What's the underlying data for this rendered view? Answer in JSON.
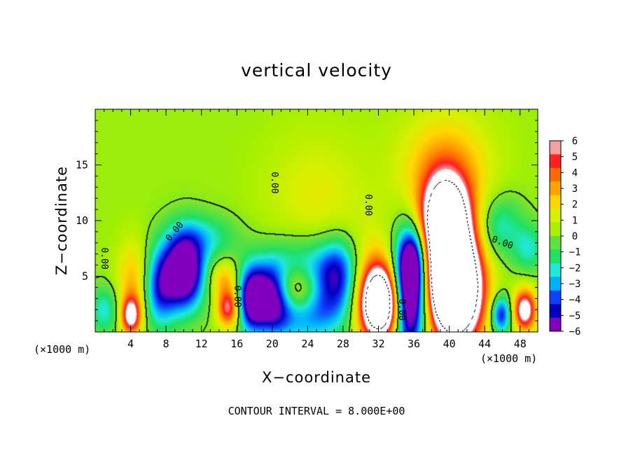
{
  "chart_data": {
    "type": "heatmap",
    "title": "vertical velocity",
    "xlabel": "X−coordinate",
    "ylabel": "Z−coordinate",
    "x_unit_left": "(×1000 m)",
    "x_unit_right": "(×1000 m)",
    "xlim": [
      0,
      50
    ],
    "ylim": [
      0,
      20
    ],
    "x_ticks": [
      4,
      8,
      12,
      16,
      20,
      24,
      28,
      32,
      36,
      40,
      44,
      48
    ],
    "y_ticks": [
      5,
      10,
      15
    ],
    "colorbar": {
      "min": -6,
      "max": 6,
      "ticks": [
        "6",
        "5",
        "4",
        "3",
        "2",
        "1",
        "0",
        "−1",
        "−2",
        "−3",
        "−4",
        "−5",
        "−6"
      ],
      "colors": [
        "#f4a0a0",
        "#ff2020",
        "#ff6a00",
        "#ffa500",
        "#ffd700",
        "#d8f000",
        "#a8f000",
        "#60e040",
        "#20e060",
        "#20e8d8",
        "#00b0ff",
        "#1040ff",
        "#0000c0",
        "#8000c0"
      ]
    },
    "background_value": 0.3,
    "features": [
      {
        "x": 22.5,
        "y": 3.8,
        "w": 0.95,
        "sx": 2.3,
        "sy": 1.6
      },
      {
        "x": 24.0,
        "y": 3.6,
        "w": -0.9,
        "sx": 3.8,
        "sy": 2.6
      },
      {
        "x": 19.8,
        "y": 3.2,
        "w": -0.8,
        "sx": 1.6,
        "sy": 2.0
      },
      {
        "x": 10.0,
        "y": 5.5,
        "w": -0.95,
        "sx": 1.6,
        "sy": 2.4
      },
      {
        "x": 32.3,
        "y": 2.5,
        "w": 1.15,
        "sx": 1.6,
        "sy": 2.2
      },
      {
        "x": 31.5,
        "y": 3.6,
        "w": 0.5,
        "sx": 2.0,
        "sy": 3.0
      },
      {
        "x": 35.4,
        "y": 3.5,
        "w": -1.2,
        "sx": 1.4,
        "sy": 3.6
      },
      {
        "x": 36.0,
        "y": 6.5,
        "w": -0.5,
        "sx": 1.0,
        "sy": 2.0
      },
      {
        "x": 40.0,
        "y": 6.0,
        "w": 1.3,
        "sx": 2.2,
        "sy": 3.8
      },
      {
        "x": 41.0,
        "y": 3.0,
        "w": 0.9,
        "sx": 2.0,
        "sy": 3.0
      },
      {
        "x": 39.5,
        "y": 10.5,
        "w": 0.75,
        "sx": 1.8,
        "sy": 2.5
      },
      {
        "x": 39.5,
        "y": 14.5,
        "w": 0.35,
        "sx": 3.5,
        "sy": 3.5
      },
      {
        "x": 45.8,
        "y": 1.6,
        "w": -0.6,
        "sx": 0.8,
        "sy": 1.2
      },
      {
        "x": 48.5,
        "y": 2.0,
        "w": 0.8,
        "sx": 0.9,
        "sy": 1.3
      },
      {
        "x": 15.0,
        "y": 2.2,
        "w": 0.65,
        "sx": 0.9,
        "sy": 1.2
      },
      {
        "x": 14.5,
        "y": 4.8,
        "w": 0.3,
        "sx": 1.2,
        "sy": 1.2
      },
      {
        "x": 17.5,
        "y": 3.0,
        "w": -0.55,
        "sx": 1.0,
        "sy": 2.0
      },
      {
        "x": 4.0,
        "y": 1.5,
        "w": 0.7,
        "sx": 0.8,
        "sy": 1.2
      },
      {
        "x": 4.3,
        "y": 4.5,
        "w": 0.3,
        "sx": 1.3,
        "sy": 2.5
      },
      {
        "x": 7.2,
        "y": 4.0,
        "w": -0.5,
        "sx": 1.3,
        "sy": 2.5
      },
      {
        "x": 1.0,
        "y": 2.0,
        "w": -0.3,
        "sx": 1.2,
        "sy": 1.5
      },
      {
        "x": 27.5,
        "y": 6.0,
        "w": -0.3,
        "sx": 1.5,
        "sy": 2.0
      },
      {
        "x": 12.5,
        "y": 8.5,
        "w": -0.25,
        "sx": 2.5,
        "sy": 1.5
      },
      {
        "x": 45.5,
        "y": 9.5,
        "w": -0.3,
        "sx": 2.0,
        "sy": 2.0
      },
      {
        "x": 49.0,
        "y": 7.5,
        "w": -0.25,
        "sx": 1.2,
        "sy": 1.5
      },
      {
        "x": 25.0,
        "y": 12.0,
        "w": 0.15,
        "sx": 4.0,
        "sy": 4.0
      }
    ],
    "contour_labels": [
      {
        "text": "0.00",
        "x": 9.0,
        "y": 9.0,
        "rotate": -50
      },
      {
        "text": "0.00",
        "x": 20.2,
        "y": 13.4,
        "rotate": 90
      },
      {
        "text": "0.00",
        "x": 30.8,
        "y": 11.4,
        "rotate": 90
      },
      {
        "text": "0.00",
        "x": 16.0,
        "y": 3.2,
        "rotate": 90
      },
      {
        "text": "0.00",
        "x": 1.0,
        "y": 6.6,
        "rotate": 90
      },
      {
        "text": "0.00",
        "x": 46.0,
        "y": 8.0,
        "rotate": 20
      },
      {
        "text": "0.00",
        "x": 34.6,
        "y": 2.0,
        "rotate": 90
      }
    ]
  },
  "contour_interval_text": "CONTOUR INTERVAL = 8.000E+00"
}
